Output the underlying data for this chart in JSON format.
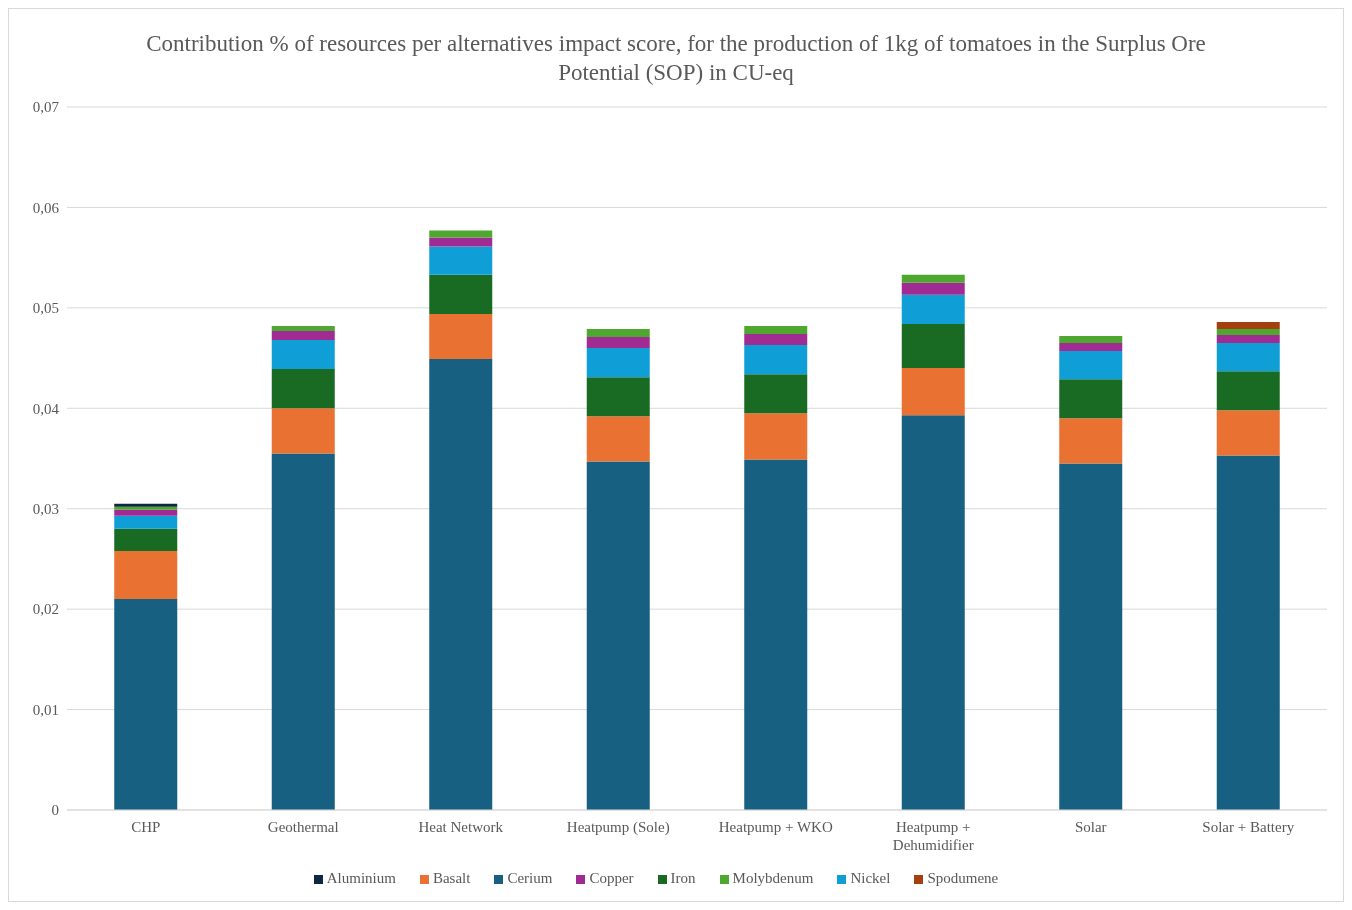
{
  "chart_data": {
    "type": "bar",
    "title": "Contribution % of resources per alternatives impact score, for the production of 1kg of tomatoes in the Surplus Ore Potential (SOP) in CU-eq",
    "categories": [
      "CHP",
      "Geothermal",
      "Heat Network",
      "Heatpump (Sole)",
      "Heatpump + WKO",
      "Heatpump + Dehumidifier",
      "Solar",
      "Solar + Battery"
    ],
    "stacked": true,
    "series": [
      {
        "name": "Cerium",
        "color": "#176082",
        "values": [
          0.021,
          0.0355,
          0.0449,
          0.0347,
          0.0349,
          0.0393,
          0.0345,
          0.0353
        ]
      },
      {
        "name": "Basalt",
        "color": "#e97132",
        "values": [
          0.0048,
          0.0045,
          0.0045,
          0.0045,
          0.0046,
          0.0047,
          0.0045,
          0.0045
        ]
      },
      {
        "name": "Iron",
        "color": "#196b24",
        "values": [
          0.0022,
          0.0039,
          0.0039,
          0.0039,
          0.0039,
          0.0044,
          0.0039,
          0.0039
        ]
      },
      {
        "name": "Nickel",
        "color": "#0f9ed5",
        "values": [
          0.0013,
          0.0029,
          0.0028,
          0.0029,
          0.0029,
          0.0029,
          0.0028,
          0.0028
        ]
      },
      {
        "name": "Copper",
        "color": "#a02b93",
        "values": [
          0.0006,
          0.0009,
          0.0009,
          0.0011,
          0.0011,
          0.0012,
          0.0008,
          0.0008
        ]
      },
      {
        "name": "Molybdenum",
        "color": "#4ea72e",
        "values": [
          0.0003,
          0.0005,
          0.0007,
          0.0008,
          0.0008,
          0.0008,
          0.0007,
          0.0006
        ]
      },
      {
        "name": "Aluminium",
        "color": "#0e2841",
        "values": [
          0.0003,
          0,
          0,
          0,
          0,
          0,
          0,
          0
        ]
      },
      {
        "name": "Spodumene",
        "color": "#a5400e",
        "values": [
          0,
          0,
          0,
          0,
          0,
          0,
          0,
          0.0007
        ]
      }
    ],
    "ylim": [
      0,
      0.07
    ],
    "yticks": [
      0,
      {
        "value": 0.01,
        "label": "0,01"
      },
      {
        "value": 0.02,
        "label": "0,02"
      },
      {
        "value": 0.03,
        "label": "0,03"
      },
      {
        "value": 0.04,
        "label": "0,04"
      },
      {
        "value": 0.05,
        "label": "0,05"
      },
      {
        "value": 0.06,
        "label": "0,06"
      },
      {
        "value": 0.07,
        "label": "0,07"
      }
    ],
    "grid": "y",
    "legend": "bottom"
  }
}
